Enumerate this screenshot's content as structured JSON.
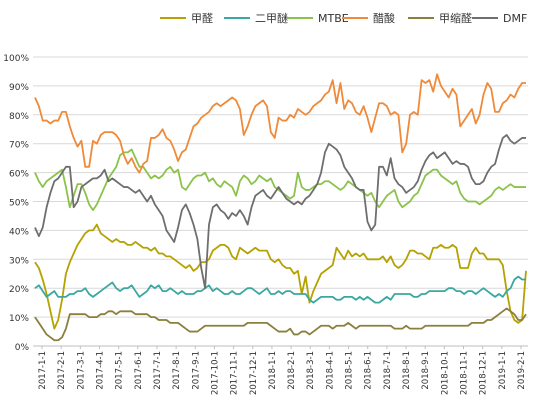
{
  "chart_data": {
    "type": "line",
    "title": "",
    "xlabel": "",
    "ylabel": "",
    "ylim": [
      0,
      100
    ],
    "y_ticks": [
      0,
      10,
      20,
      30,
      40,
      50,
      60,
      70,
      80,
      90,
      100
    ],
    "y_tick_labels": [
      "0%",
      "10%",
      "20%",
      "30%",
      "40%",
      "50%",
      "60%",
      "70%",
      "80%",
      "90%",
      "100%"
    ],
    "x_tick_labels": [
      "2017-1-1",
      "2017-2-1",
      "2017-3-1",
      "2017-4-1",
      "2017-5-1",
      "2017-6-1",
      "2017-7-1",
      "2017-8-1",
      "2017-9-1",
      "2017-10-1",
      "2017-11-1",
      "2017-12-1",
      "2018-1-1",
      "2018-2-1",
      "2018-3-1",
      "2018-4-1",
      "2018-5-1",
      "2018-6-1",
      "2018-7-1",
      "2018-8-1",
      "2018-9-1",
      "2018-10-1",
      "2018-11-1",
      "2018-12-1",
      "2019-1-1",
      "2019-2-1"
    ],
    "grid": "horizontal",
    "legend_position": "top",
    "series": [
      {
        "name": "甲醛",
        "color": "#b5a200",
        "values": [
          29,
          27,
          23,
          18,
          12,
          6,
          9,
          16,
          25,
          29,
          32,
          35,
          37,
          39,
          40,
          40,
          42,
          39,
          38,
          37,
          36,
          37,
          36,
          36,
          35,
          35,
          36,
          35,
          34,
          34,
          33,
          34,
          32,
          32,
          31,
          31,
          30,
          29,
          28,
          27,
          28,
          26,
          27,
          29,
          29,
          30,
          33,
          34,
          35,
          35,
          34,
          31,
          30,
          34,
          33,
          32,
          33,
          34,
          33,
          33,
          33,
          30,
          29,
          30,
          28,
          27,
          27,
          25,
          26,
          18,
          24,
          15,
          19,
          22,
          25,
          26,
          27,
          28,
          34,
          32,
          30,
          33,
          31,
          32,
          31,
          32,
          30,
          30,
          30,
          30,
          31,
          29,
          31,
          28,
          27,
          28,
          30,
          33,
          33,
          32,
          32,
          31,
          30,
          34,
          34,
          35,
          34,
          34,
          35,
          34,
          27,
          27,
          27,
          32,
          34,
          32,
          32,
          30,
          30,
          30,
          30,
          28,
          19,
          12,
          9,
          8,
          9,
          26
        ]
      },
      {
        "name": "二甲醚",
        "color": "#3aa8a0",
        "values": [
          20,
          21,
          19,
          17,
          18,
          19,
          17,
          17,
          17,
          18,
          18,
          19,
          19,
          20,
          18,
          17,
          18,
          19,
          20,
          21,
          22,
          20,
          19,
          20,
          20,
          21,
          19,
          17,
          18,
          19,
          21,
          20,
          21,
          19,
          19,
          20,
          19,
          18,
          19,
          18,
          18,
          18,
          19,
          19,
          20,
          21,
          19,
          20,
          19,
          18,
          18,
          19,
          18,
          18,
          19,
          20,
          20,
          19,
          18,
          19,
          20,
          18,
          18,
          19,
          18,
          19,
          19,
          18,
          18,
          18,
          18,
          16,
          15,
          16,
          17,
          17,
          17,
          17,
          16,
          16,
          17,
          17,
          17,
          16,
          17,
          16,
          17,
          16,
          15,
          15,
          16,
          17,
          16,
          18,
          18,
          18,
          18,
          18,
          17,
          17,
          18,
          18,
          19,
          19,
          19,
          19,
          19,
          20,
          20,
          19,
          19,
          18,
          19,
          19,
          18,
          19,
          20,
          19,
          18,
          17,
          18,
          17,
          19,
          20,
          23,
          24,
          23,
          23
        ]
      },
      {
        "name": "MTBE",
        "color": "#8bc34a",
        "values": [
          60,
          57,
          55,
          57,
          58,
          59,
          60,
          61,
          55,
          48,
          52,
          56,
          56,
          53,
          49,
          47,
          49,
          52,
          55,
          58,
          60,
          62,
          66,
          67,
          67,
          68,
          65,
          62,
          62,
          60,
          58,
          59,
          58,
          59,
          61,
          62,
          60,
          61,
          55,
          54,
          56,
          58,
          59,
          59,
          60,
          57,
          58,
          56,
          55,
          57,
          56,
          55,
          52,
          57,
          59,
          58,
          56,
          57,
          59,
          58,
          57,
          58,
          55,
          54,
          53,
          52,
          51,
          52,
          60,
          55,
          54,
          54,
          55,
          56,
          56,
          57,
          57,
          56,
          55,
          54,
          55,
          57,
          56,
          55,
          54,
          53,
          52,
          53,
          50,
          48,
          50,
          52,
          53,
          54,
          50,
          48,
          49,
          50,
          52,
          53,
          56,
          59,
          60,
          61,
          61,
          59,
          58,
          57,
          56,
          57,
          53,
          51,
          50,
          50,
          50,
          49,
          50,
          51,
          52,
          54,
          55,
          54,
          55,
          56,
          55,
          55,
          55,
          55
        ]
      },
      {
        "name": "醋酸",
        "color": "#ee8a3a",
        "values": [
          86,
          83,
          78,
          78,
          77,
          78,
          78,
          81,
          81,
          76,
          72,
          69,
          71,
          62,
          62,
          71,
          70,
          73,
          74,
          74,
          74,
          73,
          71,
          66,
          63,
          65,
          62,
          60,
          63,
          64,
          72,
          72,
          73,
          75,
          72,
          71,
          68,
          64,
          67,
          68,
          72,
          76,
          77,
          79,
          80,
          81,
          83,
          84,
          83,
          84,
          85,
          86,
          85,
          82,
          73,
          76,
          80,
          83,
          84,
          85,
          83,
          74,
          72,
          79,
          78,
          78,
          80,
          79,
          82,
          81,
          80,
          81,
          83,
          84,
          85,
          87,
          88,
          92,
          84,
          91,
          82,
          85,
          84,
          81,
          80,
          83,
          79,
          74,
          79,
          84,
          84,
          83,
          80,
          81,
          80,
          67,
          70,
          80,
          81,
          80,
          92,
          91,
          92,
          88,
          94,
          90,
          88,
          86,
          89,
          87,
          76,
          78,
          80,
          82,
          77,
          80,
          87,
          91,
          89,
          81,
          81,
          84,
          85,
          87,
          86,
          89,
          91,
          91
        ]
      },
      {
        "name": "甲缩醛",
        "color": "#8a7f3c",
        "values": [
          10,
          8,
          6,
          4,
          3,
          2,
          2,
          3,
          6,
          11,
          11,
          11,
          11,
          11,
          10,
          10,
          10,
          11,
          11,
          12,
          12,
          11,
          12,
          12,
          12,
          12,
          11,
          11,
          11,
          11,
          10,
          10,
          9,
          9,
          9,
          8,
          8,
          8,
          7,
          6,
          5,
          5,
          5,
          6,
          7,
          7,
          7,
          7,
          7,
          7,
          7,
          7,
          7,
          7,
          7,
          8,
          8,
          8,
          8,
          8,
          8,
          7,
          6,
          5,
          5,
          5,
          6,
          4,
          4,
          5,
          5,
          4,
          5,
          6,
          7,
          7,
          7,
          6,
          7,
          7,
          7,
          8,
          7,
          6,
          7,
          7,
          7,
          7,
          7,
          7,
          7,
          7,
          7,
          6,
          6,
          6,
          7,
          6,
          6,
          6,
          6,
          7,
          7,
          7,
          7,
          7,
          7,
          7,
          7,
          7,
          7,
          7,
          7,
          8,
          8,
          8,
          8,
          9,
          9,
          10,
          11,
          12,
          13,
          12,
          11,
          9,
          9,
          11
        ]
      },
      {
        "name": "DMF",
        "color": "#6e6e6e",
        "values": [
          41,
          38,
          41,
          48,
          53,
          57,
          58,
          60,
          62,
          62,
          48,
          50,
          55,
          56,
          57,
          58,
          58,
          59,
          61,
          57,
          58,
          57,
          56,
          55,
          55,
          54,
          53,
          54,
          52,
          50,
          52,
          49,
          47,
          45,
          40,
          38,
          36,
          41,
          47,
          49,
          46,
          42,
          37,
          27,
          20,
          42,
          48,
          49,
          47,
          46,
          44,
          46,
          45,
          47,
          45,
          42,
          48,
          52,
          53,
          54,
          52,
          51,
          53,
          55,
          53,
          51,
          50,
          49,
          50,
          49,
          51,
          52,
          54,
          56,
          60,
          67,
          70,
          69,
          68,
          66,
          62,
          60,
          58,
          55,
          54,
          54,
          43,
          40,
          42,
          62,
          62,
          59,
          65,
          58,
          56,
          55,
          53,
          54,
          55,
          57,
          61,
          64,
          66,
          67,
          65,
          66,
          67,
          65,
          63,
          64,
          63,
          63,
          62,
          58,
          56,
          56,
          57,
          60,
          62,
          63,
          68,
          72,
          73,
          71,
          70,
          71,
          72,
          72
        ]
      }
    ]
  }
}
